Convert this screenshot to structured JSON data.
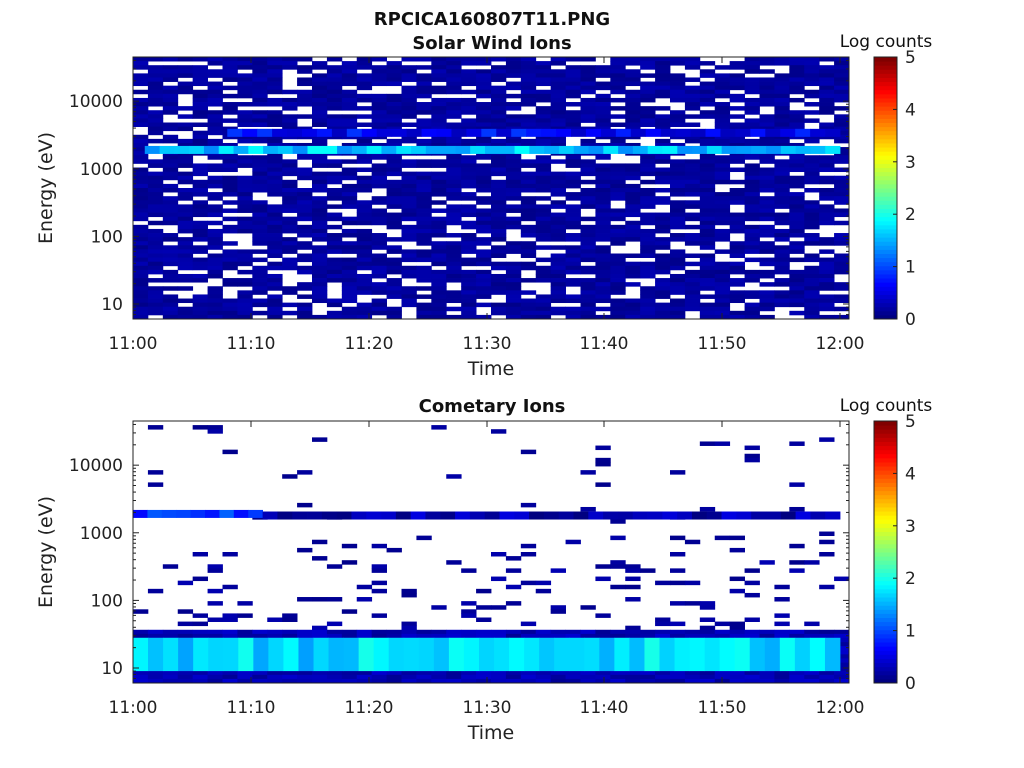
{
  "figure_title": "RPCICA160807T11.PNG",
  "chart_data": [
    {
      "type": "heatmap",
      "title": "Solar Wind Ions",
      "xlabel": "Time",
      "ylabel": "Energy (eV)",
      "x_ticks": [
        "11:00",
        "11:10",
        "11:20",
        "11:30",
        "11:40",
        "11:50",
        "12:00"
      ],
      "x_range": [
        "11:00",
        "12:00"
      ],
      "y_scale": "log",
      "y_ticks": [
        10,
        100,
        1000,
        10000
      ],
      "y_tick_labels": [
        "10",
        "100",
        "1000",
        "10000"
      ],
      "y_range": [
        6,
        45000
      ],
      "colorbar": {
        "label": "Log counts",
        "ticks": [
          "0",
          "1",
          "2",
          "3",
          "4",
          "5"
        ],
        "range": [
          0,
          5
        ],
        "colormap": "jet"
      },
      "features": [
        {
          "description_source": "band",
          "energy_eV": 1900,
          "log_counts": 1.6,
          "from": "11:01",
          "to": "12:00"
        },
        {
          "description_source": "band",
          "energy_eV": 3400,
          "log_counts": 0.6,
          "from": "11:08",
          "to": "12:00"
        },
        {
          "description_source": "background",
          "energy_eV_range": [
            6,
            45000
          ],
          "log_counts": 0.15
        }
      ]
    },
    {
      "type": "heatmap",
      "title": "Cometary Ions",
      "xlabel": "Time",
      "ylabel": "Energy (eV)",
      "x_ticks": [
        "11:00",
        "11:10",
        "11:20",
        "11:30",
        "11:40",
        "11:50",
        "12:00"
      ],
      "x_range": [
        "11:00",
        "12:00"
      ],
      "y_scale": "log",
      "y_ticks": [
        10,
        100,
        1000,
        10000
      ],
      "y_tick_labels": [
        "10",
        "100",
        "1000",
        "10000"
      ],
      "y_range": [
        6,
        45000
      ],
      "colorbar": {
        "label": "Log counts",
        "ticks": [
          "0",
          "1",
          "2",
          "3",
          "4",
          "5"
        ],
        "range": [
          0,
          5
        ],
        "colormap": "jet"
      },
      "features": [
        {
          "description_source": "band",
          "energy_eV_range": [
            9,
            28
          ],
          "log_counts": 1.7,
          "from": "11:00",
          "to": "12:00"
        },
        {
          "description_source": "band",
          "energy_eV": 1900,
          "log_counts": 0.8,
          "from": "11:00",
          "to": "11:11"
        },
        {
          "description_source": "band",
          "energy_eV": 1800,
          "log_counts": 0.2,
          "from": "11:11",
          "to": "12:00"
        }
      ]
    }
  ]
}
